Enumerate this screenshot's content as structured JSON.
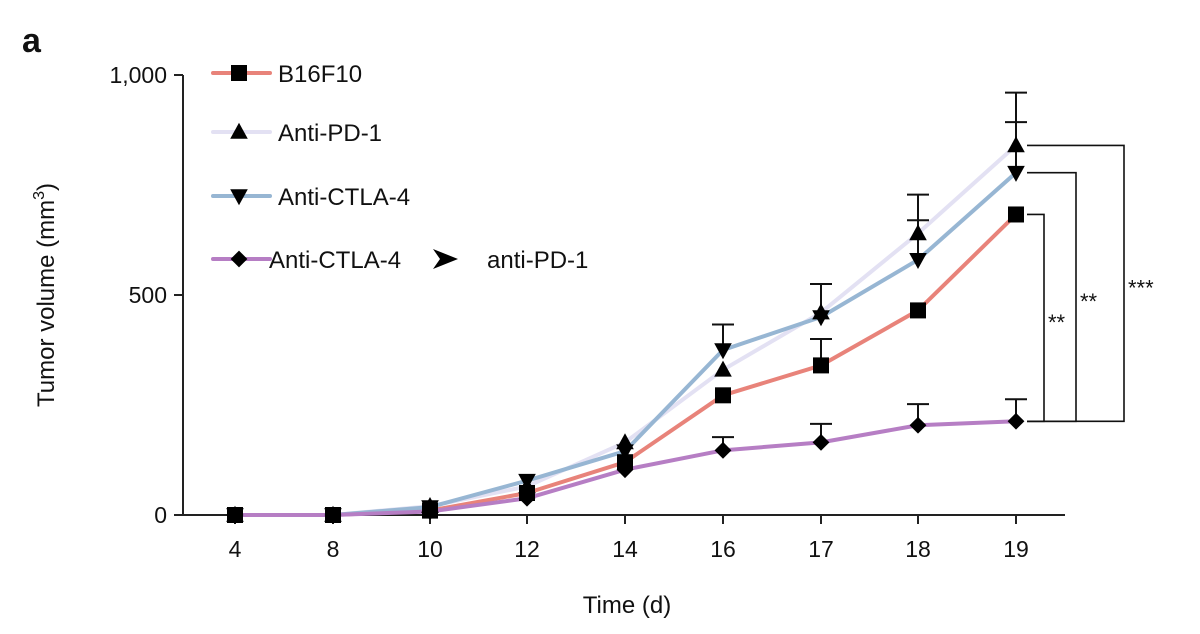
{
  "panel_label": "a",
  "chart_data": {
    "type": "line",
    "title": "",
    "xlabel": "Time (d)",
    "ylabel": "Tumor volume (mm",
    "ylabel_superscript": "3",
    "ylabel_close": ")",
    "categories": [
      "4",
      "8",
      "10",
      "12",
      "14",
      "16",
      "17",
      "18",
      "19"
    ],
    "ylim": [
      0,
      1000
    ],
    "yticks": [
      0,
      500,
      1000
    ],
    "ytick_labels": [
      "0",
      "500",
      "1,000"
    ],
    "legend_position": "top-left",
    "series": [
      {
        "name": "B16F10",
        "marker": "square",
        "color": "#e8837a",
        "values": [
          0,
          0,
          10,
          50,
          120,
          272,
          340,
          465,
          683
        ],
        "errors": [
          0,
          0,
          0,
          0,
          0,
          0,
          60,
          0,
          0
        ]
      },
      {
        "name": "Anti-PD-1",
        "marker": "triangle-up",
        "color": "#e3e1f3",
        "values": [
          0,
          0,
          20,
          65,
          165,
          330,
          460,
          640,
          840
        ],
        "errors": [
          0,
          0,
          0,
          0,
          0,
          0,
          65,
          88,
          120
        ]
      },
      {
        "name": "Anti-CTLA-4",
        "marker": "triangle-down",
        "color": "#97b6d3",
        "values": [
          0,
          0,
          18,
          78,
          145,
          375,
          450,
          580,
          778
        ],
        "errors": [
          0,
          0,
          0,
          0,
          0,
          58,
          75,
          90,
          115
        ]
      },
      {
        "name": "Anti-CTLA-4",
        "name_suffix": "anti-PD-1",
        "marker": "diamond",
        "color": "#b67ec4",
        "values": [
          0,
          0,
          8,
          38,
          103,
          147,
          165,
          204,
          213
        ],
        "errors": [
          0,
          0,
          0,
          0,
          0,
          30,
          42,
          48,
          50
        ]
      }
    ],
    "annotations": [
      {
        "text": "**",
        "from_series": 0,
        "to_series": 3
      },
      {
        "text": "**",
        "from_series": 2,
        "to_series": 3
      },
      {
        "text": "***",
        "from_series": 1,
        "to_series": 3
      }
    ]
  }
}
